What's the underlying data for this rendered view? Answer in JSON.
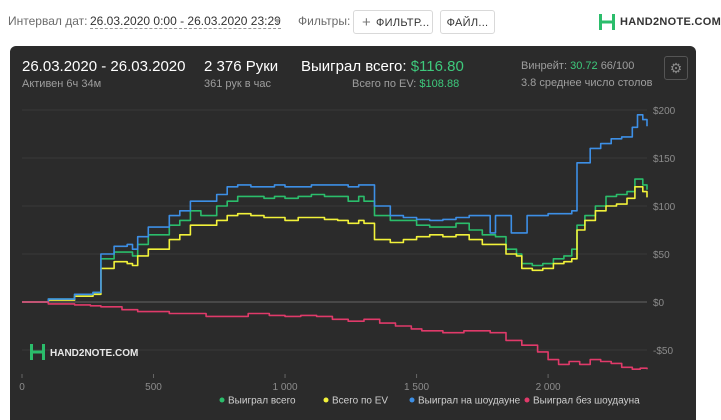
{
  "toolbar": {
    "interval_label": "Интервал дат:",
    "interval_value": "26.03.2020 0:00 - 26.03.2020 23:29",
    "filters_label": "Фильтры:",
    "filter_button": "ФИЛЬТР...",
    "file_button": "ФАЙЛ...",
    "logo_text": "HAND2NOTE.COM"
  },
  "summary": {
    "date_range": "26.03.2020 - 26.03.2020",
    "active": "Активен 6ч 34м",
    "hands": "2 376 Руки",
    "hands_per_hour": "361 рук в час",
    "won_label": "Выиграл всего:",
    "won_value": "$116.80",
    "ev_label": "Всего по EV:",
    "ev_value": "$108.88",
    "vinrate_label": "Винрейт:",
    "vinrate_value": "30.72",
    "vinrate_rest": "66/100",
    "tables": "3.8 среднее число столов"
  },
  "watermark": "HAND2NOTE.COM",
  "colors": {
    "green": "#2bbd6b",
    "yellow": "#f2f23a",
    "blue": "#3d8fe6",
    "pink": "#e03a6a",
    "panel": "#2b2b2b",
    "accent": "#3ec97c"
  },
  "chart_data": {
    "type": "line",
    "xlim": [
      0,
      2376
    ],
    "ylim": [
      -75,
      200
    ],
    "x_ticks": [
      {
        "v": 0,
        "label": "0"
      },
      {
        "v": 500,
        "label": "500"
      },
      {
        "v": 1000,
        "label": "1 000"
      },
      {
        "v": 1500,
        "label": "1 500"
      },
      {
        "v": 2000,
        "label": "2 000"
      }
    ],
    "y_ticks": [
      {
        "v": 200,
        "label": "$200"
      },
      {
        "v": 150,
        "label": "$150"
      },
      {
        "v": 100,
        "label": "$100"
      },
      {
        "v": 50,
        "label": "$50"
      },
      {
        "v": 0,
        "label": "$0"
      },
      {
        "v": -50,
        "label": "-$50"
      }
    ],
    "series": [
      {
        "name": "Выиграл всего",
        "color": "#2bbd6b",
        "points": [
          [
            0,
            0
          ],
          [
            100,
            3
          ],
          [
            200,
            8
          ],
          [
            270,
            10
          ],
          [
            300,
            45
          ],
          [
            350,
            52
          ],
          [
            400,
            52
          ],
          [
            420,
            48
          ],
          [
            440,
            60
          ],
          [
            480,
            70
          ],
          [
            520,
            70
          ],
          [
            560,
            80
          ],
          [
            600,
            85
          ],
          [
            640,
            95
          ],
          [
            680,
            90
          ],
          [
            740,
            100
          ],
          [
            780,
            105
          ],
          [
            820,
            110
          ],
          [
            870,
            110
          ],
          [
            920,
            108
          ],
          [
            960,
            110
          ],
          [
            1000,
            108
          ],
          [
            1050,
            110
          ],
          [
            1100,
            112
          ],
          [
            1150,
            110
          ],
          [
            1200,
            110
          ],
          [
            1240,
            105
          ],
          [
            1280,
            110
          ],
          [
            1300,
            105
          ],
          [
            1340,
            90
          ],
          [
            1400,
            85
          ],
          [
            1450,
            85
          ],
          [
            1500,
            80
          ],
          [
            1550,
            78
          ],
          [
            1600,
            78
          ],
          [
            1650,
            82
          ],
          [
            1700,
            75
          ],
          [
            1750,
            70
          ],
          [
            1800,
            68
          ],
          [
            1840,
            55
          ],
          [
            1880,
            50
          ],
          [
            1900,
            40
          ],
          [
            1940,
            38
          ],
          [
            1980,
            40
          ],
          [
            2020,
            45
          ],
          [
            2060,
            48
          ],
          [
            2090,
            55
          ],
          [
            2110,
            80
          ],
          [
            2140,
            90
          ],
          [
            2180,
            100
          ],
          [
            2220,
            110
          ],
          [
            2260,
            112
          ],
          [
            2300,
            115
          ],
          [
            2330,
            128
          ],
          [
            2360,
            122
          ],
          [
            2376,
            117
          ]
        ]
      },
      {
        "name": "Всего по EV",
        "color": "#f2f23a",
        "points": [
          [
            0,
            0
          ],
          [
            100,
            2
          ],
          [
            200,
            6
          ],
          [
            270,
            8
          ],
          [
            300,
            35
          ],
          [
            350,
            42
          ],
          [
            400,
            40
          ],
          [
            420,
            38
          ],
          [
            440,
            48
          ],
          [
            480,
            55
          ],
          [
            520,
            55
          ],
          [
            560,
            65
          ],
          [
            600,
            70
          ],
          [
            640,
            80
          ],
          [
            680,
            80
          ],
          [
            740,
            85
          ],
          [
            780,
            90
          ],
          [
            820,
            92
          ],
          [
            870,
            90
          ],
          [
            920,
            88
          ],
          [
            960,
            88
          ],
          [
            1000,
            85
          ],
          [
            1050,
            88
          ],
          [
            1100,
            88
          ],
          [
            1150,
            86
          ],
          [
            1200,
            85
          ],
          [
            1240,
            82
          ],
          [
            1280,
            85
          ],
          [
            1300,
            82
          ],
          [
            1340,
            65
          ],
          [
            1400,
            62
          ],
          [
            1450,
            65
          ],
          [
            1500,
            68
          ],
          [
            1550,
            70
          ],
          [
            1600,
            68
          ],
          [
            1650,
            70
          ],
          [
            1700,
            65
          ],
          [
            1750,
            60
          ],
          [
            1800,
            60
          ],
          [
            1840,
            50
          ],
          [
            1880,
            48
          ],
          [
            1900,
            35
          ],
          [
            1940,
            33
          ],
          [
            1980,
            35
          ],
          [
            2020,
            40
          ],
          [
            2060,
            42
          ],
          [
            2090,
            45
          ],
          [
            2110,
            75
          ],
          [
            2140,
            85
          ],
          [
            2180,
            95
          ],
          [
            2220,
            100
          ],
          [
            2260,
            102
          ],
          [
            2300,
            108
          ],
          [
            2330,
            120
          ],
          [
            2360,
            115
          ],
          [
            2376,
            109
          ]
        ]
      },
      {
        "name": "Выиграл на шоудауне",
        "color": "#3d8fe6",
        "points": [
          [
            0,
            0
          ],
          [
            100,
            3
          ],
          [
            200,
            8
          ],
          [
            270,
            10
          ],
          [
            300,
            50
          ],
          [
            350,
            58
          ],
          [
            400,
            60
          ],
          [
            420,
            55
          ],
          [
            440,
            68
          ],
          [
            480,
            78
          ],
          [
            520,
            78
          ],
          [
            560,
            90
          ],
          [
            600,
            95
          ],
          [
            640,
            105
          ],
          [
            680,
            105
          ],
          [
            740,
            112
          ],
          [
            780,
            120
          ],
          [
            820,
            122
          ],
          [
            870,
            120
          ],
          [
            920,
            120
          ],
          [
            960,
            122
          ],
          [
            1000,
            120
          ],
          [
            1050,
            120
          ],
          [
            1100,
            122
          ],
          [
            1150,
            122
          ],
          [
            1200,
            122
          ],
          [
            1240,
            120
          ],
          [
            1280,
            122
          ],
          [
            1300,
            122
          ],
          [
            1340,
            100
          ],
          [
            1400,
            90
          ],
          [
            1450,
            88
          ],
          [
            1500,
            86
          ],
          [
            1550,
            85
          ],
          [
            1600,
            86
          ],
          [
            1650,
            88
          ],
          [
            1700,
            90
          ],
          [
            1760,
            90
          ],
          [
            1780,
            72
          ],
          [
            1800,
            90
          ],
          [
            1840,
            90
          ],
          [
            1860,
            72
          ],
          [
            1900,
            72
          ],
          [
            1920,
            90
          ],
          [
            1960,
            90
          ],
          [
            2000,
            92
          ],
          [
            2040,
            92
          ],
          [
            2090,
            95
          ],
          [
            2110,
            145
          ],
          [
            2160,
            160
          ],
          [
            2200,
            165
          ],
          [
            2240,
            170
          ],
          [
            2280,
            172
          ],
          [
            2320,
            182
          ],
          [
            2340,
            195
          ],
          [
            2360,
            190
          ],
          [
            2376,
            183
          ]
        ]
      },
      {
        "name": "Выиграл без шоудауна",
        "color": "#e03a6a",
        "points": [
          [
            0,
            0
          ],
          [
            100,
            -2
          ],
          [
            200,
            -3
          ],
          [
            260,
            -4
          ],
          [
            300,
            -5
          ],
          [
            380,
            -8
          ],
          [
            440,
            -10
          ],
          [
            500,
            -10
          ],
          [
            560,
            -12
          ],
          [
            620,
            -12
          ],
          [
            700,
            -15
          ],
          [
            780,
            -15
          ],
          [
            860,
            -12
          ],
          [
            940,
            -14
          ],
          [
            1000,
            -15
          ],
          [
            1060,
            -14
          ],
          [
            1120,
            -15
          ],
          [
            1180,
            -18
          ],
          [
            1240,
            -20
          ],
          [
            1300,
            -18
          ],
          [
            1360,
            -22
          ],
          [
            1420,
            -25
          ],
          [
            1480,
            -28
          ],
          [
            1520,
            -30
          ],
          [
            1560,
            -30
          ],
          [
            1600,
            -32
          ],
          [
            1640,
            -32
          ],
          [
            1680,
            -30
          ],
          [
            1720,
            -30
          ],
          [
            1780,
            -32
          ],
          [
            1840,
            -40
          ],
          [
            1900,
            -45
          ],
          [
            1960,
            -52
          ],
          [
            2000,
            -60
          ],
          [
            2040,
            -65
          ],
          [
            2080,
            -62
          ],
          [
            2120,
            -65
          ],
          [
            2160,
            -60
          ],
          [
            2200,
            -62
          ],
          [
            2240,
            -64
          ],
          [
            2280,
            -68
          ],
          [
            2320,
            -70
          ],
          [
            2350,
            -69
          ],
          [
            2376,
            -70
          ]
        ]
      }
    ]
  }
}
